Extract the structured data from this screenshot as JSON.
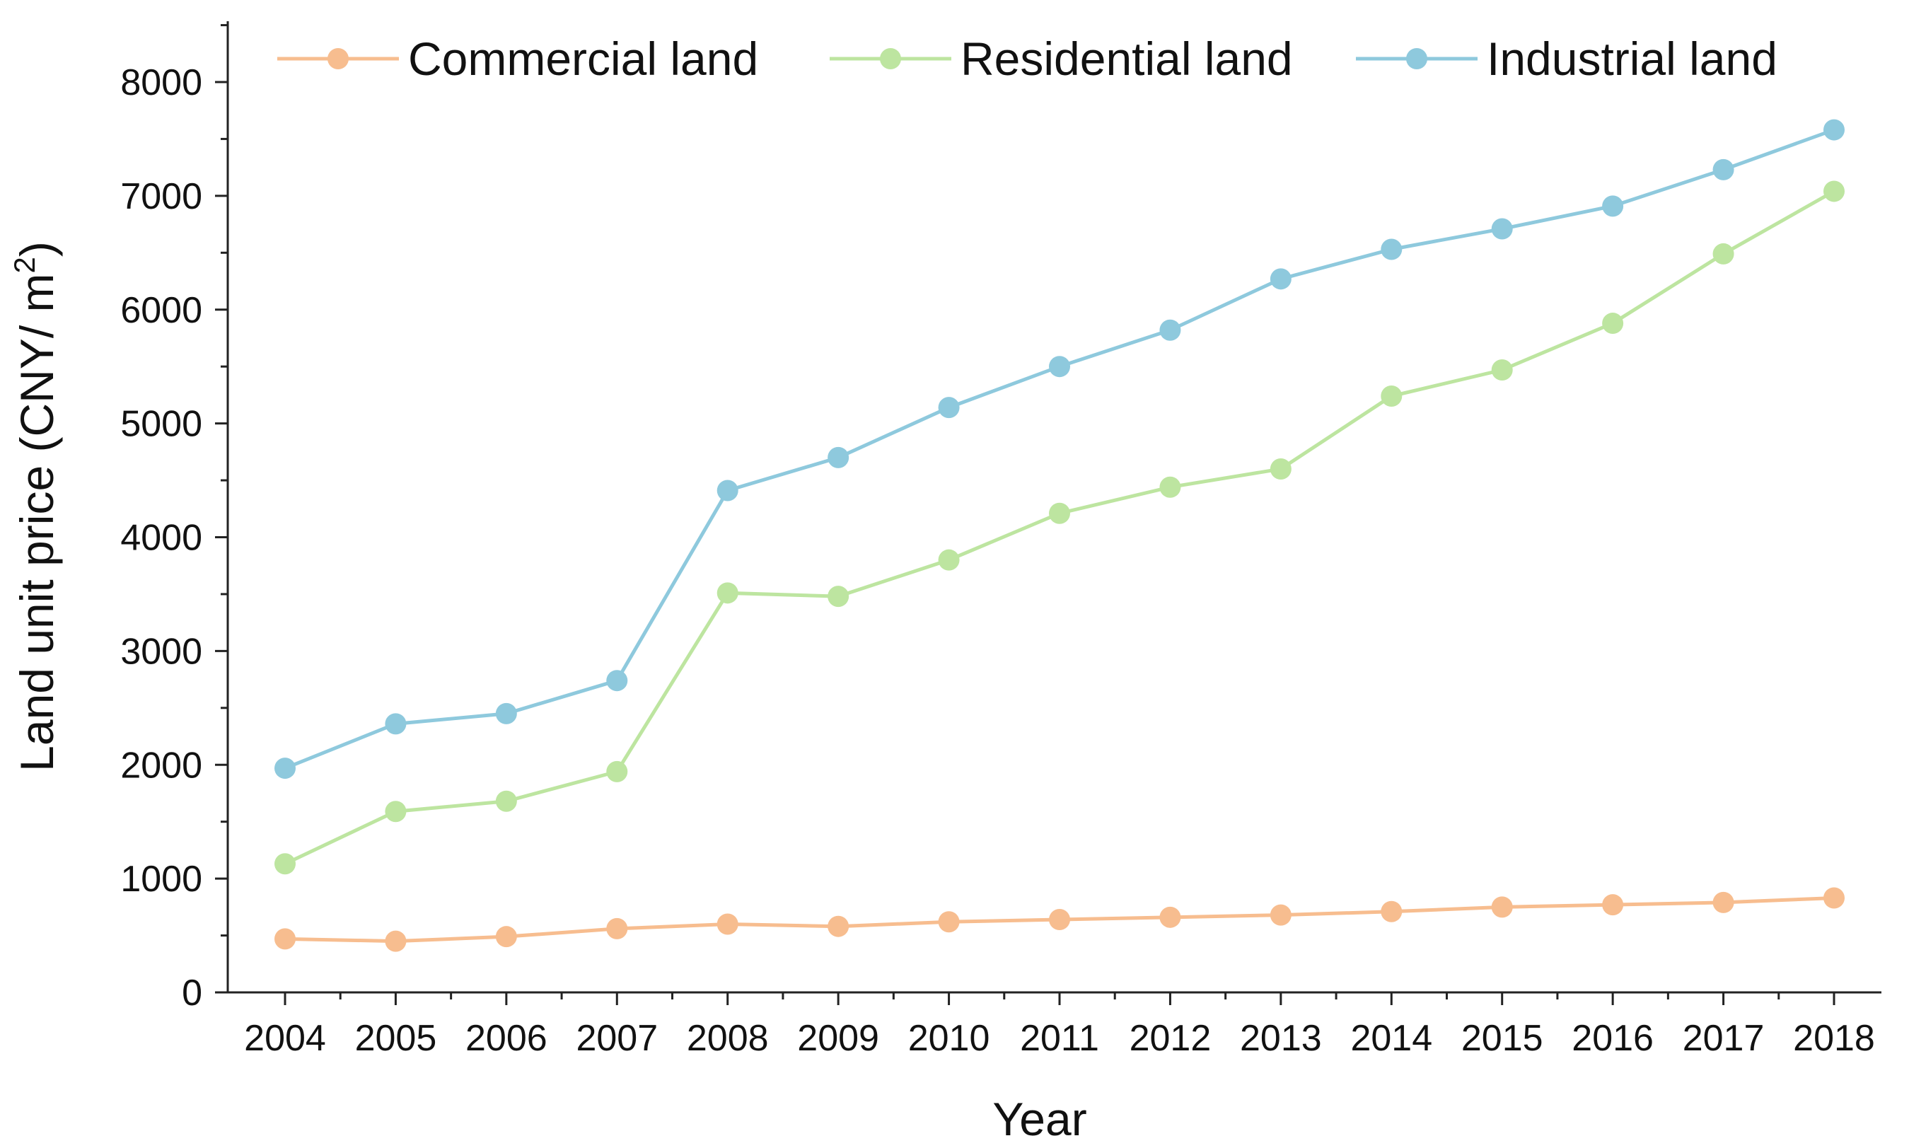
{
  "chart_data": {
    "type": "line",
    "title": "",
    "xlabel": "Year",
    "ylabel": "Land unit price (CNY/ m",
    "ylabel_sup": "2",
    "ylabel_close": ")",
    "categories": [
      "2004",
      "2005",
      "2006",
      "2007",
      "2008",
      "2009",
      "2010",
      "2011",
      "2012",
      "2013",
      "2014",
      "2015",
      "2016",
      "2017",
      "2018"
    ],
    "ylim": [
      0,
      8500
    ],
    "yticks": [
      0,
      1000,
      2000,
      3000,
      4000,
      5000,
      6000,
      7000,
      8000
    ],
    "ytick_labels": [
      "0",
      "1000",
      "2000",
      "3000",
      "4000",
      "5000",
      "6000",
      "7000",
      "8000"
    ],
    "grid": false,
    "legend_position": "top",
    "series": [
      {
        "name": "Commercial land",
        "color": "#F7BD8F",
        "values": [
          470,
          450,
          490,
          560,
          600,
          580,
          620,
          640,
          660,
          680,
          710,
          750,
          770,
          790,
          830
        ]
      },
      {
        "name": "Residential land",
        "color": "#BDE5A0",
        "values": [
          1130,
          1590,
          1680,
          1940,
          3510,
          3480,
          3800,
          4210,
          4440,
          4600,
          5240,
          5470,
          5880,
          6490,
          7040
        ]
      },
      {
        "name": "Industrial land",
        "color": "#8EC9DD",
        "values": [
          1970,
          2360,
          2450,
          2740,
          4410,
          4700,
          5140,
          5500,
          5820,
          6270,
          6530,
          6710,
          6910,
          7230,
          7580
        ]
      }
    ]
  }
}
